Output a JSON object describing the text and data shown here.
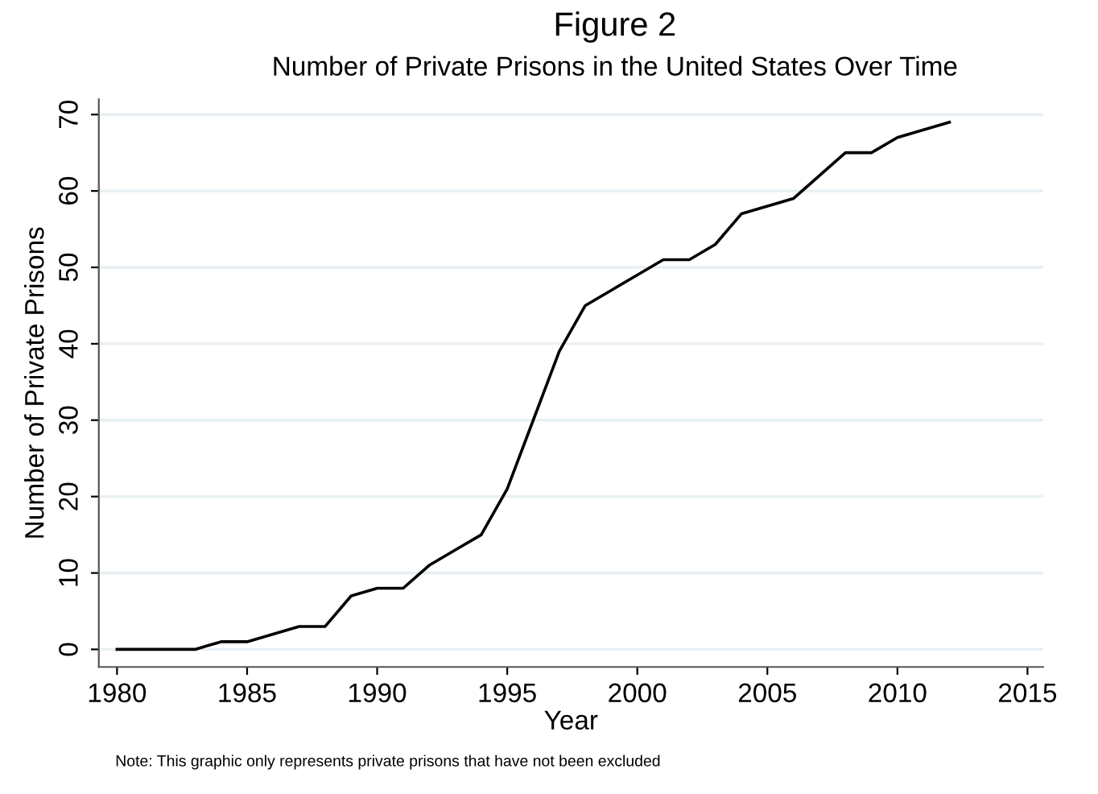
{
  "chart_data": {
    "type": "line",
    "title": "Figure 2",
    "subtitle": "Number of Private Prisons in the United States Over Time",
    "xlabel": "Year",
    "ylabel": "Number of Private Prisons",
    "x": [
      1980,
      1981,
      1982,
      1983,
      1984,
      1985,
      1986,
      1987,
      1988,
      1989,
      1990,
      1991,
      1992,
      1993,
      1994,
      1995,
      1996,
      1997,
      1998,
      1999,
      2000,
      2001,
      2002,
      2003,
      2004,
      2005,
      2006,
      2007,
      2008,
      2009,
      2010,
      2011,
      2012
    ],
    "series": [
      {
        "color": "#000000",
        "values": [
          0,
          0,
          0,
          0,
          1,
          1,
          2,
          3,
          3,
          7,
          8,
          8,
          11,
          13,
          15,
          21,
          30,
          39,
          45,
          47,
          49,
          51,
          51,
          53,
          57,
          58,
          59,
          62,
          65,
          65,
          67,
          68,
          69
        ]
      }
    ],
    "xlim": [
      1979.3,
      2015.6
    ],
    "xticks": [
      1980,
      1985,
      1990,
      1995,
      2000,
      2005,
      2010,
      2015
    ],
    "ylim": [
      -2.3,
      72
    ],
    "yticks": [
      0,
      10,
      20,
      30,
      40,
      50,
      60,
      70
    ],
    "grid": "y",
    "legend": false,
    "marker": "none",
    "line_style": "solid",
    "annotations": [
      "Note: This graphic only represents private prisons that have not been excluded"
    ]
  }
}
